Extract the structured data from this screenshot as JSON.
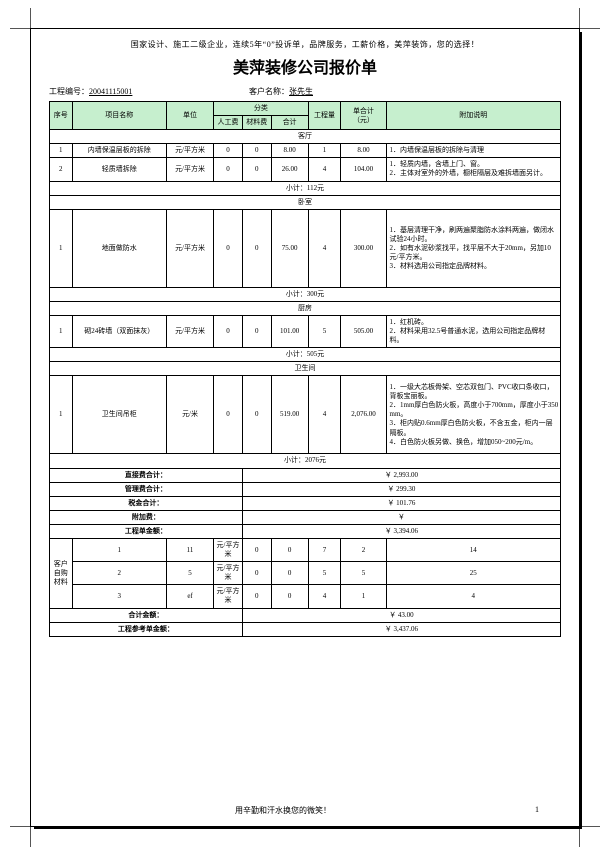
{
  "banner_text": "国家设计、施工二级企业，连续5年“0”投诉单，品牌服务，工薪价格，美萍装饰，您的选择！",
  "title": "美萍装修公司报价单",
  "meta": {
    "project_no_label": "工程编号：",
    "project_no": "20041115001",
    "customer_label": "客户名称：",
    "customer": "张先生"
  },
  "headers": {
    "seq": "序号",
    "item": "项目名称",
    "unit": "单位",
    "category": "分类",
    "labor": "人工费",
    "material": "材料费",
    "sum": "合计",
    "qty": "工程量",
    "unit_total": "单合计\n（元）",
    "notes": "附加说明"
  },
  "sections": [
    {
      "name": "客厅",
      "rows": [
        {
          "seq": "1",
          "item": "内墙保温层板的拆除",
          "unit": "元/平方米",
          "labor": "0",
          "material": "0",
          "sum": "8.00",
          "qty": "1",
          "total": "8.00",
          "notes": "1．内墙保温层板的拆除与清理"
        },
        {
          "seq": "2",
          "item": "轻质墙拆除",
          "unit": "元/平方米",
          "labor": "0",
          "material": "0",
          "sum": "26.00",
          "qty": "4",
          "total": "104.00",
          "notes": "1．轻质内墙，含墙上门、窗。\n2．主体对室外的外墙，橱柜隔层及难拆墙面另计。"
        }
      ],
      "subtotal": "小计：112元"
    },
    {
      "name": "卧室",
      "rows": [
        {
          "seq": "1",
          "item": "地面做防水",
          "unit": "元/平方米",
          "labor": "0",
          "material": "0",
          "sum": "75.00",
          "qty": "4",
          "total": "300.00",
          "notes": "1．基层清理干净，刷两遍聚脂防水涂料两遍，做闭水试验24小时。\n2．如有水泥砂浆找平，找平层不大于20mm，另加10元/平方米。\n3．材料选用公司指定品牌材料。",
          "tall": true
        }
      ],
      "subtotal": "小计：300元"
    },
    {
      "name": "厨房",
      "rows": [
        {
          "seq": "1",
          "item": "砌24砖墙（双面抹灰）",
          "unit": "元/平方米",
          "labor": "0",
          "material": "0",
          "sum": "101.00",
          "qty": "5",
          "total": "505.00",
          "notes": "1．红机砖。\n2．材料采用32.5号普通水泥，选用公司指定品牌材料。"
        }
      ],
      "subtotal": "小计：505元"
    },
    {
      "name": "卫生间",
      "rows": [
        {
          "seq": "1",
          "item": "卫生间吊柜",
          "unit": "元/米",
          "labor": "0",
          "material": "0",
          "sum": "519.00",
          "qty": "4",
          "total": "2,076.00",
          "notes": "1．一级大芯板骨架、空芯双包门、PVC收口条收口，背板宝丽板。\n2．1mm厚白色防火板，高度小于700mm，厚度小于350mm。\n3．柜内贴0.6mm厚白色防火板，不含五金，柜内一层隔板。\n4．白色防火板另做、换色，增加050~200元/m。",
          "tall": true
        }
      ],
      "subtotal": "小计：2076元"
    }
  ],
  "summaries": [
    {
      "label": "直接费合计：",
      "value": "￥ 2,993.00"
    },
    {
      "label": "管理费合计：",
      "value": "￥ 299.30"
    },
    {
      "label": "税金合计：",
      "value": "￥ 101.76"
    },
    {
      "label": "附加费：",
      "value": "￥"
    },
    {
      "label": "工程单金额：",
      "value": "￥ 3,394.06"
    }
  ],
  "cust_materials_label": "客户自购材料",
  "cust_materials": [
    {
      "seq": "1",
      "item": "11",
      "unit": "元/平方米",
      "labor": "0",
      "material": "0",
      "sum": "7",
      "qty": "2",
      "total": "14"
    },
    {
      "seq": "2",
      "item": "5",
      "unit": "元/平方米",
      "labor": "0",
      "material": "0",
      "sum": "5",
      "qty": "5",
      "total": "25"
    },
    {
      "seq": "3",
      "item": "ef",
      "unit": "元/平方米",
      "labor": "0",
      "material": "0",
      "sum": "4",
      "qty": "1",
      "total": "4"
    }
  ],
  "bottom": [
    {
      "label": "合计金额：",
      "value": "￥ 43.00"
    },
    {
      "label": "工程参考单金额：",
      "value": "￥ 3,437.06"
    }
  ],
  "footer_text": "用辛勤和汗水换您的微笑！",
  "page_no": "1",
  "colwidths": {
    "seq": 22,
    "item": 92,
    "unit": 46,
    "labor": 28,
    "material": 28,
    "sum": 36,
    "qty": 32,
    "total": 44,
    "notes": 170
  }
}
